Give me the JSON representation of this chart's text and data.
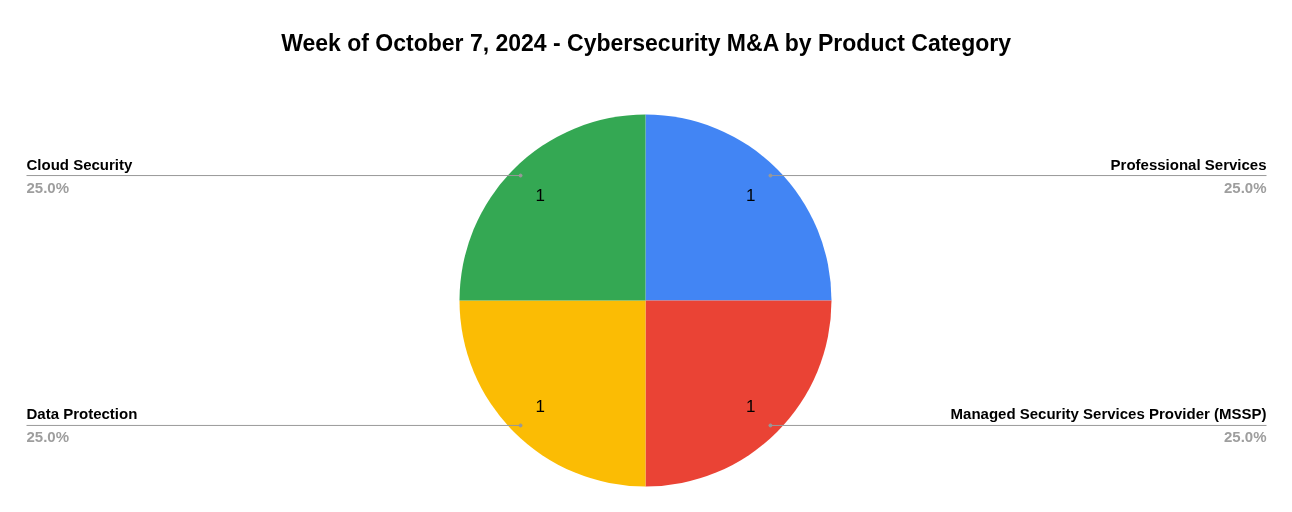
{
  "chart_data": {
    "type": "pie",
    "title": "Week of October 7, 2024 - Cybersecurity M&A by Product Category",
    "categories": [
      "Professional Services",
      "Managed Security Services Provider (MSSP)",
      "Data Protection",
      "Cloud Security"
    ],
    "values": [
      25,
      25,
      25,
      25
    ],
    "colors": [
      "#4285f4",
      "#ea4335",
      "#fbbc04",
      "#34a853"
    ],
    "value_labels": [
      "25.0%",
      "25.0%",
      "25.0%",
      "25.0%"
    ],
    "annotations": [
      {
        "text": "1",
        "x": "Professional Services"
      },
      {
        "text": "1",
        "x": "Managed Security Services Provider (MSSP)"
      },
      {
        "text": "1",
        "x": "Data Protection"
      },
      {
        "text": "1",
        "x": "Cloud Security"
      }
    ]
  }
}
